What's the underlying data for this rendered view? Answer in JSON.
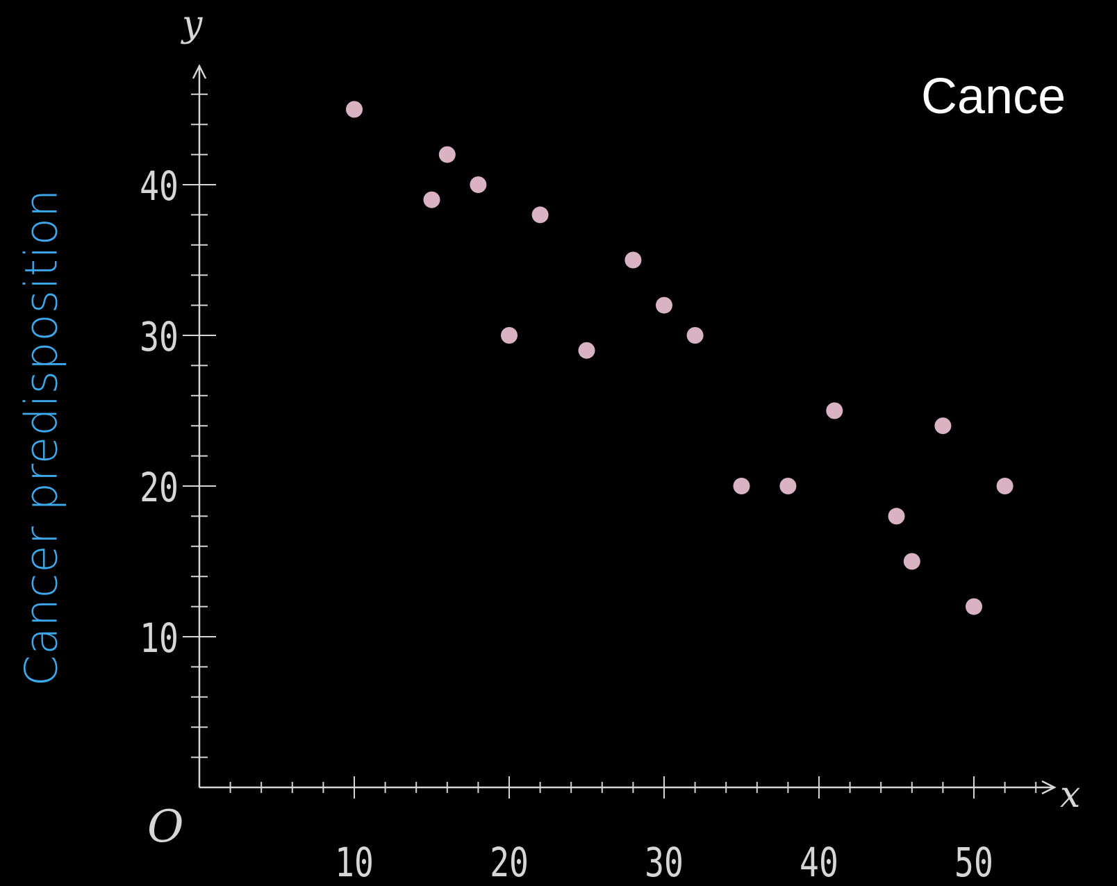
{
  "chart_data": {
    "type": "scatter",
    "title": "Cance",
    "ylabel": "Cancer predisposition",
    "xlabel": "",
    "axis_x_name": "x",
    "axis_y_name": "y",
    "origin_label": "O",
    "xlim": [
      0,
      55
    ],
    "ylim": [
      0,
      48
    ],
    "x_ticks": [
      "10",
      "20",
      "30",
      "40",
      "50"
    ],
    "y_ticks": [
      "10",
      "20",
      "30",
      "40"
    ],
    "grid": false,
    "points": [
      {
        "x": 10,
        "y": 45
      },
      {
        "x": 15,
        "y": 39
      },
      {
        "x": 16,
        "y": 42
      },
      {
        "x": 18,
        "y": 40
      },
      {
        "x": 20,
        "y": 30
      },
      {
        "x": 22,
        "y": 38
      },
      {
        "x": 25,
        "y": 29
      },
      {
        "x": 28,
        "y": 35
      },
      {
        "x": 30,
        "y": 32
      },
      {
        "x": 32,
        "y": 30
      },
      {
        "x": 35,
        "y": 20
      },
      {
        "x": 38,
        "y": 20
      },
      {
        "x": 41,
        "y": 25
      },
      {
        "x": 45,
        "y": 18
      },
      {
        "x": 46,
        "y": 15
      },
      {
        "x": 48,
        "y": 24
      },
      {
        "x": 50,
        "y": 12
      },
      {
        "x": 52,
        "y": 20
      }
    ]
  },
  "colors": {
    "background": "#000000",
    "axis": "#d6d6d6",
    "point": "#d9b3c2",
    "ylabel": "#3ea8ec",
    "title": "#ffffff"
  }
}
